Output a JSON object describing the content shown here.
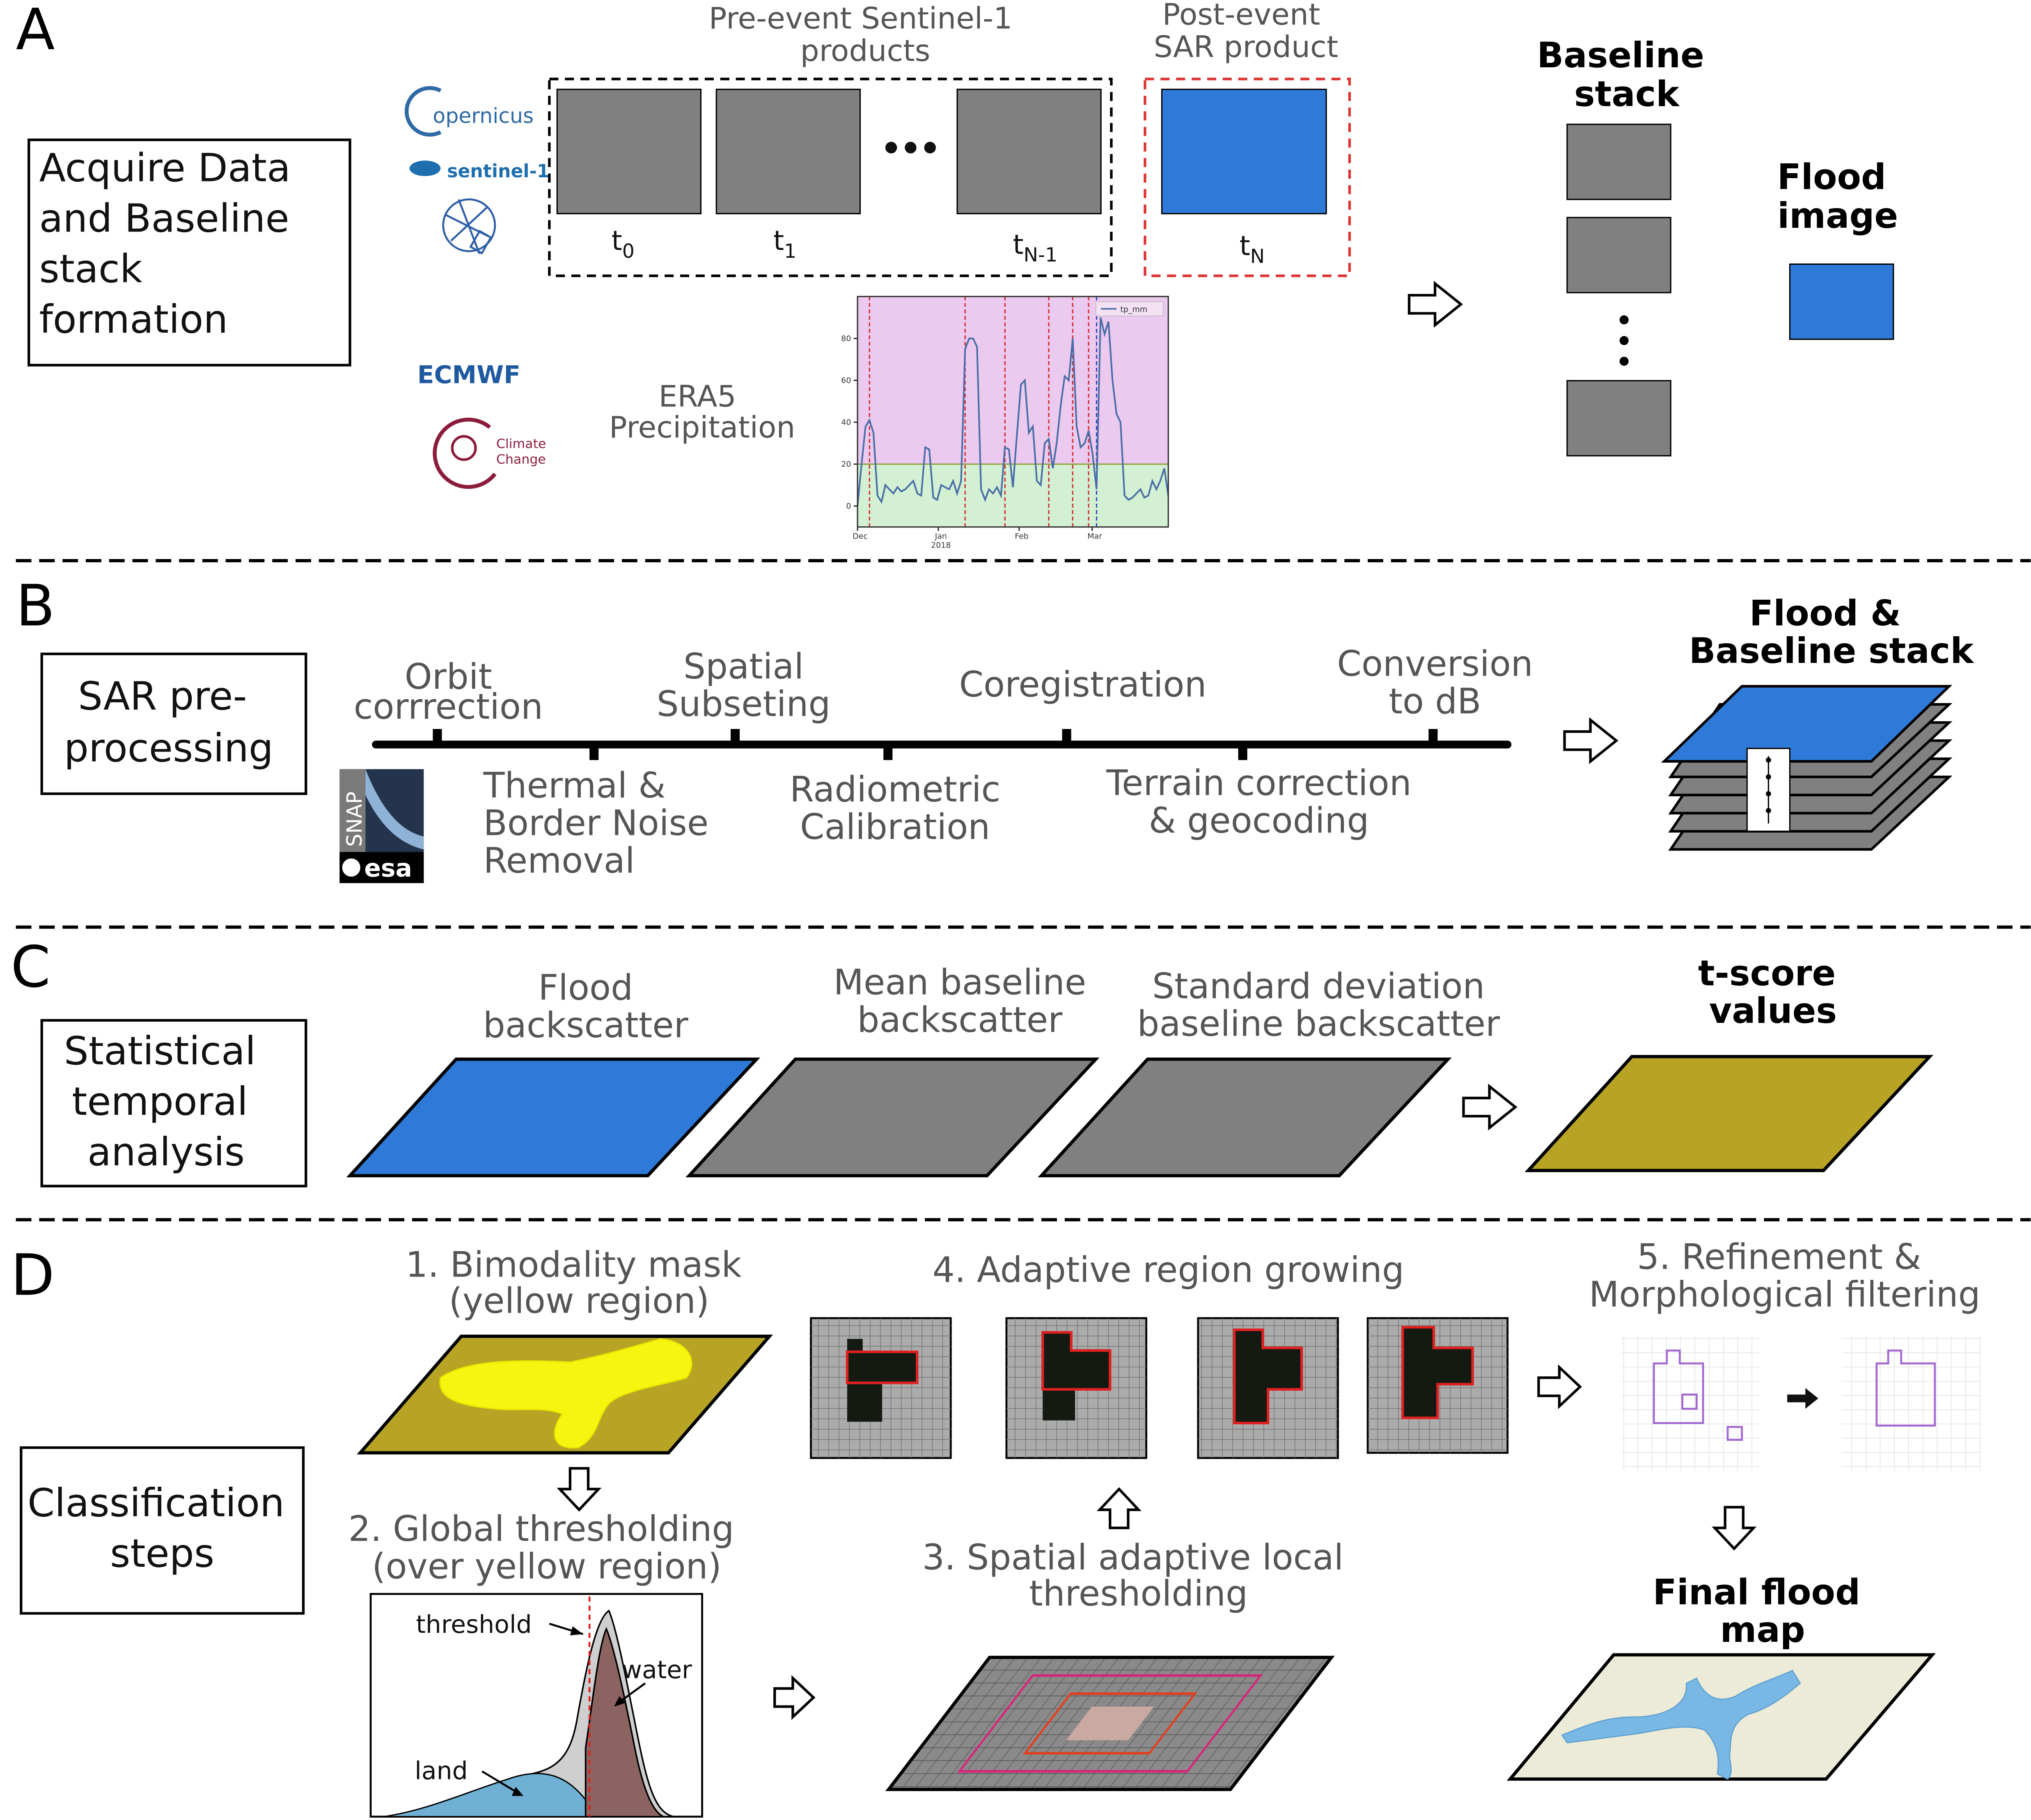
{
  "panels": {
    "a": {
      "letter": "A",
      "box_label": [
        "Acquire Data",
        "and Baseline",
        "stack",
        "formation"
      ],
      "pre_event_label": [
        "Pre-event Sentinel-1",
        "products"
      ],
      "post_event_label": [
        "Post-event",
        "SAR product"
      ],
      "time_labels": [
        {
          "base": "t",
          "sub": "0"
        },
        {
          "base": "t",
          "sub": "1"
        },
        {
          "base": "t",
          "sub": "N-1"
        },
        {
          "base": "t",
          "sub": "N"
        }
      ],
      "logos": {
        "copernicus": "opernicus",
        "sentinel": "sentinel-1",
        "ecmwf": "ECMWF",
        "climate": [
          "Climate",
          "Change"
        ]
      },
      "era5_label": [
        "ERA5",
        "Precipitation"
      ],
      "baseline_stack_label": [
        "Baseline",
        "stack"
      ],
      "flood_image_label": [
        "Flood",
        "image"
      ]
    },
    "b": {
      "letter": "B",
      "box_label": [
        "SAR pre-",
        "processing"
      ],
      "steps_top": [
        [
          "Orbit",
          "corrrection"
        ],
        [
          "Spatial",
          "Subseting"
        ],
        [
          "Coregistration"
        ],
        [
          "Conversion",
          "to dB"
        ]
      ],
      "steps_bottom": [
        [
          "Thermal &",
          "Border Noise",
          "Removal"
        ],
        [
          "Radiometric",
          "Calibration"
        ],
        [
          "Terrain correction",
          "& geocoding"
        ]
      ],
      "snap_logo": {
        "word": "SNAP",
        "agency": "esa"
      },
      "result_label": [
        "Flood &",
        "Baseline stack"
      ]
    },
    "c": {
      "letter": "C",
      "box_label": [
        "Statistical",
        "temporal",
        "analysis"
      ],
      "items": [
        [
          "Flood",
          "backscatter"
        ],
        [
          "Mean baseline",
          "backscatter"
        ],
        [
          "Standard deviation",
          "baseline backscatter"
        ]
      ],
      "result_label": [
        "t-score",
        "values"
      ]
    },
    "d": {
      "letter": "D",
      "box_label": [
        "Classification",
        "steps"
      ],
      "step1": [
        "1. Bimodality mask",
        "(yellow region)"
      ],
      "step2": [
        "2. Global thresholding",
        "(over yellow region)"
      ],
      "histogram_labels": {
        "threshold": "threshold",
        "water": "water",
        "land": "land"
      },
      "step3": [
        "3. Spatial adaptive local",
        "thresholding"
      ],
      "step4": "4. Adaptive region growing",
      "step5": [
        "5. Refinement &",
        "Morphological filtering"
      ],
      "final_label": [
        "Final flood",
        "map"
      ]
    }
  },
  "chart_data": {
    "type": "line",
    "series": [
      {
        "name": "tp_mm",
        "values": [
          0,
          20,
          38,
          41,
          35,
          5,
          2,
          10,
          8,
          6,
          9,
          7,
          8,
          10,
          12,
          6,
          5,
          28,
          27,
          4,
          3,
          10,
          9,
          8,
          12,
          6,
          12,
          75,
          80,
          80,
          76,
          8,
          3,
          8,
          6,
          9,
          5,
          28,
          27,
          9,
          34,
          58,
          60,
          35,
          38,
          12,
          10,
          30,
          32,
          18,
          30,
          48,
          62,
          60,
          80,
          38,
          28,
          30,
          36,
          25,
          8,
          90,
          82,
          88,
          60,
          44,
          40,
          5,
          3,
          4,
          6,
          8,
          4,
          5,
          12,
          8,
          12,
          18,
          5
        ]
      }
    ],
    "x_ticks": [
      "Dec",
      "Jan",
      "Feb",
      "Mar"
    ],
    "x_sublabel": "2018",
    "y_ticks": [
      0,
      20,
      40,
      60,
      80
    ],
    "ylim": [
      -10,
      100
    ],
    "threshold": 20,
    "colors": {
      "above": "#ecc9ef",
      "below": "#d3f0d3",
      "line": "#4a6ea8",
      "event_lines": "#d12b2b",
      "flood_line": "#3344bb"
    }
  },
  "colors": {
    "blue": "#2f7ad8",
    "gray": "#808080",
    "olive": "#b8a424",
    "yellow": "#f5f510",
    "red_dash": "#dd3333",
    "purple": "#a267d2",
    "map_water": "#79b7e4",
    "map_land": "#ecebd7"
  },
  "icons": [
    "satellite-icon",
    "climate-change-icon",
    "right-arrow-icon",
    "down-arrow-icon",
    "up-arrow-icon",
    "filled-right-arrow-icon"
  ]
}
